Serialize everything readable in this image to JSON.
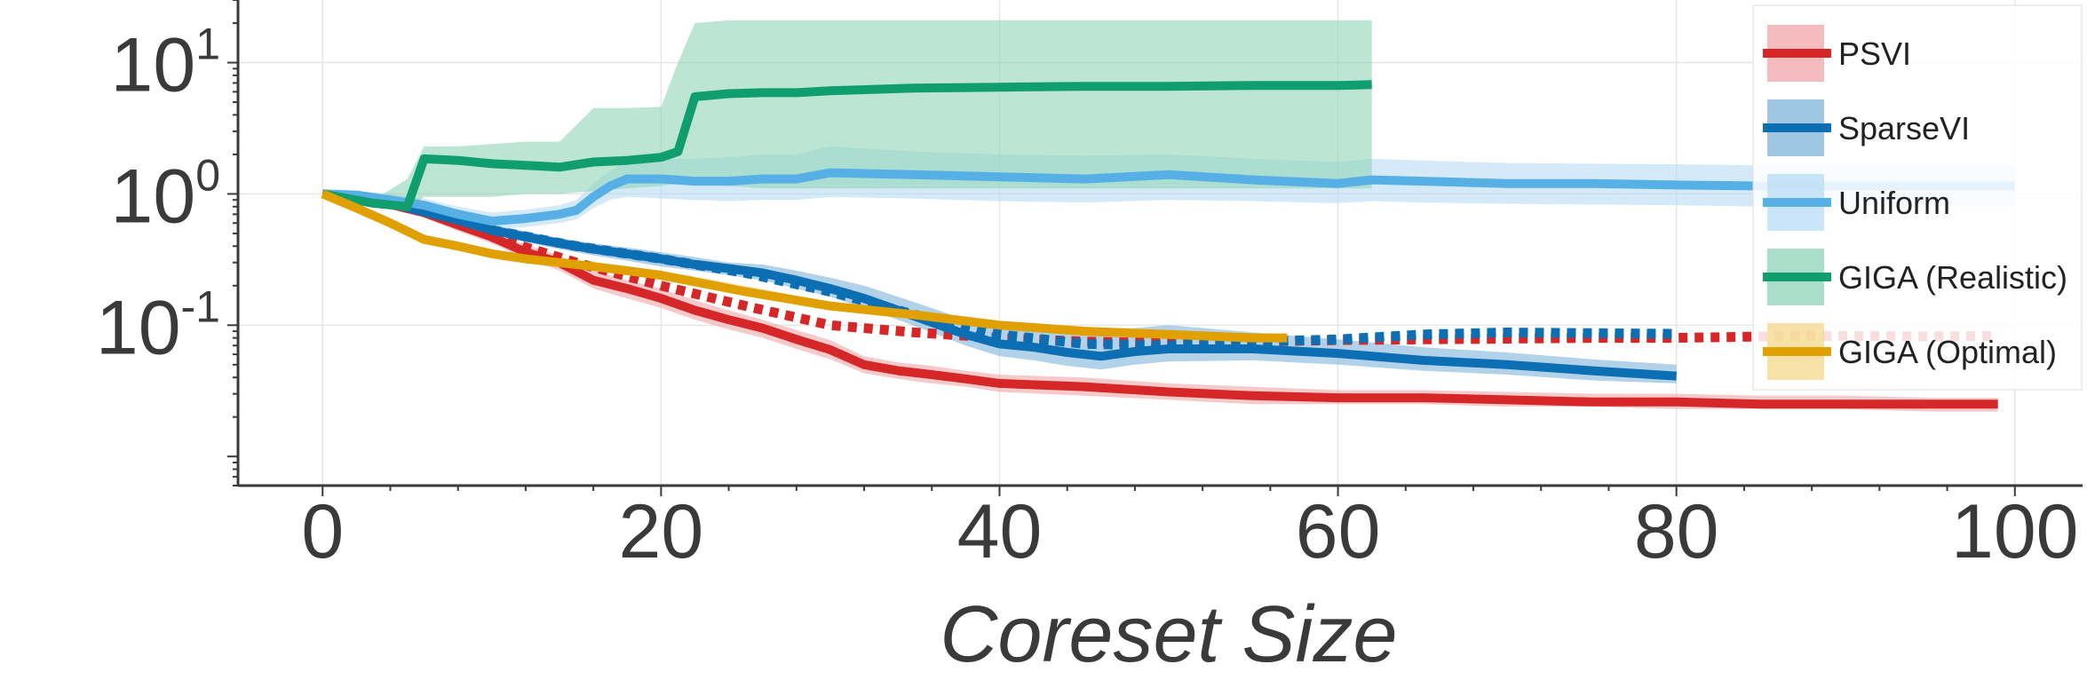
{
  "chart_data": {
    "type": "line",
    "xlabel": "Coreset Size",
    "ylabel": "",
    "y_scale": "log",
    "xlim": [
      -5,
      104
    ],
    "ylim": [
      0.006,
      30
    ],
    "x_ticks": [
      0,
      20,
      40,
      60,
      80,
      100
    ],
    "y_ticks": [
      {
        "value": 10,
        "base": "10",
        "exp": "1"
      },
      {
        "value": 1,
        "base": "10",
        "exp": "0"
      },
      {
        "value": 0.1,
        "base": "10",
        "exp": "-1"
      }
    ],
    "grid": true,
    "legend_position": "top-right",
    "series": [
      {
        "name": "PSVI",
        "color": "#d62728",
        "band_color": "#f0a6a8",
        "style": "solid",
        "x": [
          0,
          2,
          4,
          6,
          8,
          10,
          12,
          14,
          16,
          18,
          20,
          22,
          24,
          26,
          28,
          30,
          32,
          34,
          36,
          38,
          40,
          45,
          50,
          55,
          60,
          65,
          70,
          75,
          80,
          85,
          90,
          95,
          99
        ],
        "y": [
          1.0,
          0.92,
          0.83,
          0.72,
          0.58,
          0.47,
          0.36,
          0.3,
          0.22,
          0.19,
          0.16,
          0.13,
          0.11,
          0.095,
          0.078,
          0.065,
          0.05,
          0.045,
          0.042,
          0.039,
          0.036,
          0.034,
          0.031,
          0.029,
          0.028,
          0.028,
          0.027,
          0.026,
          0.026,
          0.025,
          0.025,
          0.025,
          0.025
        ],
        "lower": [
          1.0,
          0.88,
          0.78,
          0.66,
          0.52,
          0.42,
          0.32,
          0.26,
          0.19,
          0.16,
          0.135,
          0.11,
          0.093,
          0.08,
          0.066,
          0.055,
          0.043,
          0.039,
          0.036,
          0.034,
          0.031,
          0.029,
          0.027,
          0.025,
          0.025,
          0.025,
          0.024,
          0.024,
          0.023,
          0.023,
          0.023,
          0.022,
          0.022
        ],
        "upper": [
          1.0,
          0.96,
          0.88,
          0.78,
          0.64,
          0.52,
          0.41,
          0.34,
          0.26,
          0.22,
          0.19,
          0.155,
          0.13,
          0.11,
          0.092,
          0.077,
          0.058,
          0.052,
          0.049,
          0.045,
          0.042,
          0.04,
          0.036,
          0.034,
          0.032,
          0.032,
          0.031,
          0.03,
          0.03,
          0.029,
          0.029,
          0.028,
          0.028
        ]
      },
      {
        "name": "",
        "color": "#d62728",
        "style": "dotted",
        "x": [
          10,
          15,
          20,
          25,
          30,
          35,
          40,
          45,
          50,
          55,
          60,
          65,
          70,
          75,
          80,
          85,
          90,
          95,
          99
        ],
        "y": [
          0.47,
          0.3,
          0.2,
          0.14,
          0.1,
          0.088,
          0.08,
          0.075,
          0.073,
          0.075,
          0.077,
          0.078,
          0.079,
          0.08,
          0.08,
          0.082,
          0.083,
          0.082,
          0.083
        ]
      },
      {
        "name": "SparseVI",
        "color": "#0c6fb3",
        "band_color": "#7fb4db",
        "style": "solid",
        "x": [
          0,
          2,
          4,
          6,
          8,
          10,
          12,
          14,
          16,
          18,
          20,
          22,
          24,
          26,
          28,
          30,
          32,
          34,
          36,
          38,
          40,
          42,
          44,
          46,
          48,
          50,
          55,
          60,
          65,
          70,
          75,
          80
        ],
        "y": [
          1.0,
          0.95,
          0.85,
          0.73,
          0.63,
          0.53,
          0.47,
          0.42,
          0.38,
          0.35,
          0.32,
          0.29,
          0.27,
          0.25,
          0.22,
          0.19,
          0.16,
          0.13,
          0.105,
          0.085,
          0.072,
          0.068,
          0.062,
          0.058,
          0.063,
          0.066,
          0.066,
          0.061,
          0.054,
          0.05,
          0.045,
          0.041
        ],
        "lower": [
          1.0,
          0.9,
          0.8,
          0.68,
          0.58,
          0.49,
          0.43,
          0.38,
          0.34,
          0.31,
          0.28,
          0.26,
          0.24,
          0.22,
          0.19,
          0.165,
          0.135,
          0.11,
          0.088,
          0.07,
          0.058,
          0.054,
          0.049,
          0.046,
          0.05,
          0.053,
          0.054,
          0.05,
          0.045,
          0.042,
          0.038,
          0.036
        ],
        "upper": [
          1.0,
          1.0,
          0.9,
          0.78,
          0.68,
          0.58,
          0.52,
          0.46,
          0.42,
          0.39,
          0.36,
          0.33,
          0.3,
          0.29,
          0.26,
          0.23,
          0.2,
          0.165,
          0.135,
          0.11,
          0.1,
          0.1,
          0.09,
          0.085,
          0.095,
          0.1,
          0.088,
          0.078,
          0.068,
          0.062,
          0.055,
          0.05
        ]
      },
      {
        "name": "",
        "color": "#0c6fb3",
        "style": "dotted",
        "x": [
          10,
          15,
          20,
          25,
          30,
          35,
          40,
          45,
          50,
          55,
          60,
          65,
          70,
          75,
          80
        ],
        "y": [
          0.53,
          0.4,
          0.32,
          0.25,
          0.18,
          0.12,
          0.085,
          0.072,
          0.07,
          0.075,
          0.078,
          0.085,
          0.088,
          0.087,
          0.086
        ]
      },
      {
        "name": "Uniform",
        "color": "#56b0e6",
        "band_color": "#b7dcf4",
        "style": "solid",
        "x": [
          0,
          2,
          4,
          6,
          8,
          10,
          12,
          14,
          15,
          16,
          17,
          18,
          20,
          22,
          24,
          26,
          28,
          30,
          35,
          40,
          45,
          50,
          55,
          60,
          62,
          65,
          70,
          75,
          80,
          85,
          90,
          95,
          100
        ],
        "y": [
          1.0,
          0.98,
          0.9,
          0.82,
          0.7,
          0.62,
          0.65,
          0.7,
          0.75,
          0.95,
          1.15,
          1.3,
          1.3,
          1.25,
          1.25,
          1.3,
          1.3,
          1.45,
          1.4,
          1.35,
          1.3,
          1.4,
          1.28,
          1.2,
          1.28,
          1.25,
          1.2,
          1.2,
          1.17,
          1.15,
          1.15,
          1.15,
          1.15
        ],
        "lower": [
          1.0,
          0.9,
          0.8,
          0.72,
          0.62,
          0.54,
          0.56,
          0.6,
          0.64,
          0.78,
          0.9,
          0.95,
          0.92,
          0.9,
          0.88,
          0.9,
          0.9,
          0.95,
          0.92,
          0.88,
          0.86,
          0.9,
          0.88,
          0.85,
          0.88,
          0.86,
          0.84,
          0.83,
          0.82,
          0.8,
          0.8,
          0.8,
          0.8
        ],
        "upper": [
          1.0,
          1.05,
          1.0,
          0.92,
          0.8,
          0.72,
          0.76,
          0.82,
          0.9,
          1.2,
          1.5,
          1.8,
          1.85,
          1.85,
          1.9,
          2.0,
          2.0,
          2.3,
          2.1,
          2.0,
          1.95,
          2.0,
          1.85,
          1.75,
          1.85,
          1.8,
          1.72,
          1.7,
          1.68,
          1.65,
          1.65,
          1.65,
          1.65
        ]
      },
      {
        "name": "GIGA (Realistic)",
        "color": "#119e6e",
        "band_color": "#8fd3b8",
        "style": "solid",
        "x": [
          0,
          3,
          5,
          6,
          8,
          10,
          12,
          14,
          16,
          18,
          20,
          21,
          22,
          24,
          26,
          28,
          30,
          35,
          40,
          45,
          50,
          55,
          60,
          62
        ],
        "y": [
          1.0,
          0.85,
          0.8,
          1.85,
          1.8,
          1.7,
          1.65,
          1.6,
          1.75,
          1.8,
          1.9,
          2.1,
          5.5,
          5.8,
          5.9,
          5.9,
          6.1,
          6.4,
          6.5,
          6.6,
          6.6,
          6.7,
          6.7,
          6.8
        ],
        "lower": [
          1.0,
          0.8,
          0.76,
          0.95,
          0.95,
          0.95,
          1.0,
          1.0,
          1.05,
          1.1,
          1.15,
          1.2,
          1.2,
          1.15,
          1.1,
          1.1,
          1.1,
          1.1,
          1.1,
          1.1,
          1.1,
          1.1,
          1.1,
          1.1
        ],
        "upper": [
          1.0,
          0.9,
          1.3,
          2.3,
          2.3,
          2.4,
          2.5,
          2.5,
          4.5,
          4.5,
          4.6,
          10.0,
          20.0,
          21.0,
          21.0,
          21.0,
          21.0,
          21.0,
          21.0,
          21.0,
          21.0,
          21.0,
          21.0,
          21.0
        ]
      },
      {
        "name": "GIGA (Optimal)",
        "color": "#e0a000",
        "band_color": "#f3d78a",
        "style": "solid",
        "x": [
          0,
          2,
          4,
          6,
          8,
          10,
          12,
          14,
          16,
          18,
          20,
          25,
          30,
          35,
          40,
          45,
          50,
          55,
          57
        ],
        "y": [
          1.0,
          0.78,
          0.6,
          0.45,
          0.4,
          0.35,
          0.32,
          0.3,
          0.28,
          0.26,
          0.24,
          0.18,
          0.14,
          0.12,
          0.1,
          0.09,
          0.085,
          0.08,
          0.08
        ],
        "lower": [
          1.0,
          0.74,
          0.57,
          0.43,
          0.38,
          0.33,
          0.3,
          0.28,
          0.26,
          0.24,
          0.22,
          0.17,
          0.13,
          0.11,
          0.093,
          0.084,
          0.079,
          0.075,
          0.075
        ],
        "upper": [
          1.0,
          0.82,
          0.63,
          0.48,
          0.42,
          0.37,
          0.34,
          0.32,
          0.3,
          0.28,
          0.26,
          0.2,
          0.15,
          0.13,
          0.108,
          0.097,
          0.092,
          0.086,
          0.086
        ]
      }
    ]
  }
}
